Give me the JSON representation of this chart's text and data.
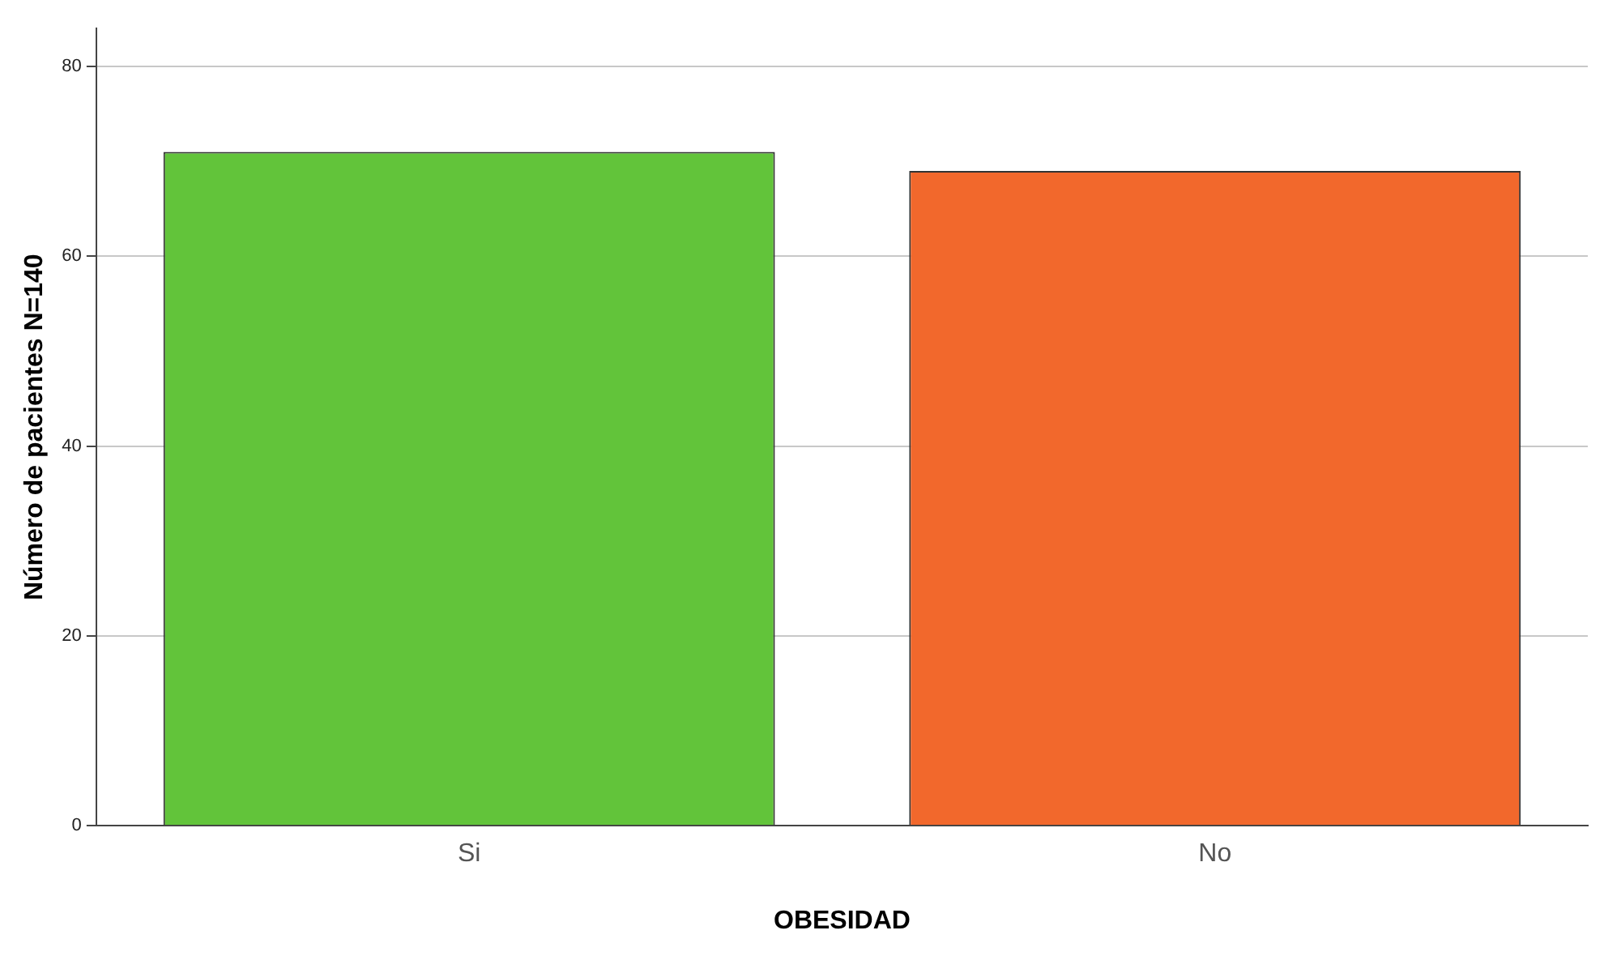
{
  "chart_data": {
    "type": "bar",
    "xlabel": "OBESIDAD",
    "ylabel": "Número de pacientes N=140",
    "categories": [
      "Si",
      "No"
    ],
    "values": [
      71,
      69
    ],
    "colors": [
      "#62c43a",
      "#f2682c"
    ],
    "ylim": [
      0,
      84
    ],
    "yticks": [
      0,
      20,
      40,
      60,
      80
    ],
    "grid": "y"
  }
}
